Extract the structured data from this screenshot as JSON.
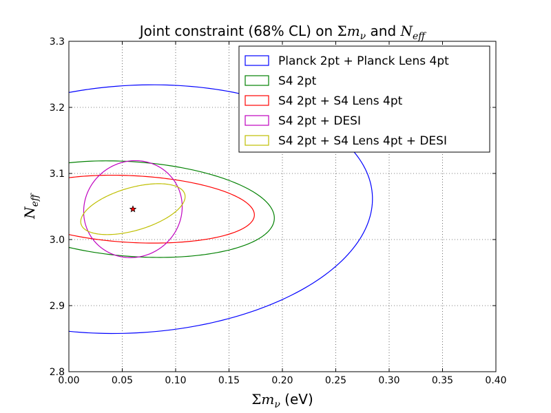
{
  "chart_data": {
    "type": "scatter",
    "title": {
      "prefix": "Joint constraint (68% CL) on ",
      "sigma": "Σ",
      "m": "m",
      "nu": "ν",
      "and": " and ",
      "N": "N",
      "eff": "eff"
    },
    "xlabel": {
      "sigma": "Σ",
      "m": "m",
      "nu": "ν",
      "unit": " (eV)"
    },
    "ylabel": {
      "N": "N",
      "eff": "eff"
    },
    "xlim": [
      0.0,
      0.4
    ],
    "ylim": [
      2.8,
      3.3
    ],
    "xticks": [
      "0.00",
      "0.05",
      "0.10",
      "0.15",
      "0.20",
      "0.25",
      "0.30",
      "0.35",
      "0.40"
    ],
    "yticks": [
      "2.8",
      "2.9",
      "3.0",
      "3.1",
      "3.2",
      "3.3"
    ],
    "grid": true,
    "legend_position": "top-right",
    "fiducial": {
      "x": 0.06,
      "y": 3.046
    },
    "series": [
      {
        "name": "Planck 2pt + Planck Lens 4pt",
        "color": "#0000ff",
        "cx": 0.06,
        "cy": 3.046,
        "a": 0.225,
        "b": 0.187,
        "tilt": 0.1
      },
      {
        "name": "S4 2pt",
        "color": "#008000",
        "cx": 0.06,
        "cy": 3.046,
        "a": 0.133,
        "b": 0.0715,
        "tilt": -0.1
      },
      {
        "name": "S4 2pt + S4 Lens 4pt",
        "color": "#ff0000",
        "cx": 0.06,
        "cy": 3.046,
        "a": 0.114,
        "b": 0.0505,
        "tilt": -0.07
      },
      {
        "name": "S4 2pt + DESI",
        "color": "#bf00bf",
        "cx": 0.06,
        "cy": 3.046,
        "a": 0.046,
        "b": 0.0735,
        "tilt": -0.1
      },
      {
        "name": "S4 2pt + S4 Lens 4pt + DESI",
        "color": "#bfbf00",
        "cx": 0.06,
        "cy": 3.046,
        "a": 0.052,
        "b": 0.0315,
        "tilt": 0.4
      }
    ]
  }
}
